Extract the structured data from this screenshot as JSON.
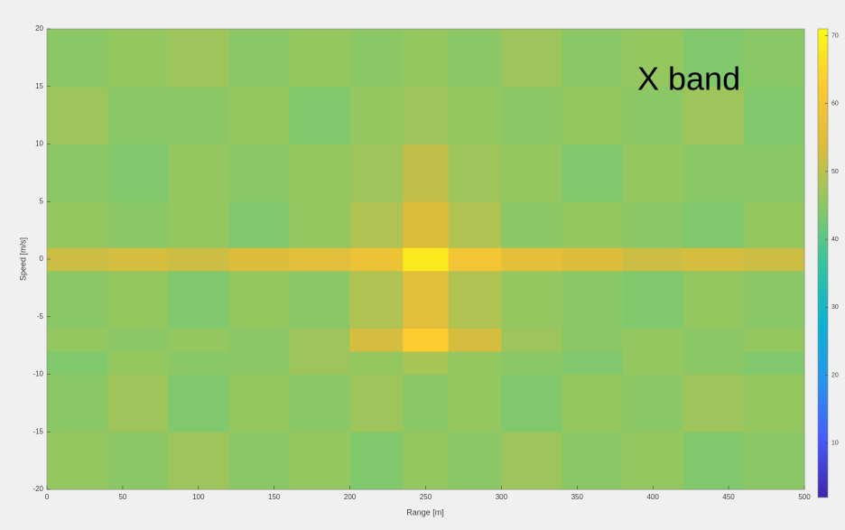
{
  "chart_data": {
    "type": "heatmap",
    "xlabel": "Range [m]",
    "ylabel": "Speed [m/s]",
    "annotation": "X band",
    "x_bins": [
      0,
      40,
      80,
      120,
      160,
      200,
      235,
      265,
      300,
      340,
      380,
      420,
      460,
      500
    ],
    "y_bins": [
      -20,
      -15,
      -10,
      -8,
      -6,
      -1,
      1,
      5,
      10,
      15,
      20
    ],
    "values": [
      [
        46,
        45,
        47,
        45,
        46,
        44,
        46,
        45,
        47,
        45,
        46,
        44,
        45
      ],
      [
        45,
        47,
        44,
        46,
        45,
        47,
        45,
        46,
        44,
        46,
        45,
        47,
        46
      ],
      [
        44,
        46,
        45,
        45,
        47,
        46,
        48,
        46,
        45,
        44,
        46,
        45,
        44
      ],
      [
        46,
        45,
        46,
        45,
        47,
        53,
        63,
        53,
        47,
        45,
        46,
        45,
        46
      ],
      [
        45,
        46,
        44,
        46,
        45,
        49,
        55,
        49,
        46,
        45,
        44,
        46,
        45
      ],
      [
        52,
        53,
        52,
        54,
        55,
        58,
        68,
        60,
        56,
        54,
        52,
        53,
        52
      ],
      [
        46,
        45,
        46,
        44,
        46,
        49,
        54,
        49,
        45,
        46,
        45,
        44,
        46
      ],
      [
        45,
        44,
        46,
        45,
        46,
        47,
        51,
        47,
        46,
        44,
        46,
        45,
        45
      ],
      [
        47,
        45,
        45,
        46,
        44,
        46,
        47,
        46,
        45,
        46,
        45,
        47,
        44
      ],
      [
        45,
        46,
        47,
        45,
        46,
        45,
        46,
        45,
        47,
        45,
        46,
        44,
        45
      ]
    ],
    "xlim": [
      0,
      500
    ],
    "xticks": [
      0,
      50,
      100,
      150,
      200,
      250,
      300,
      350,
      400,
      450,
      500
    ],
    "ylim": [
      -20,
      20
    ],
    "yticks": [
      -20,
      -15,
      -10,
      -5,
      0,
      5,
      10,
      15,
      20
    ],
    "colormap": "parula",
    "clim": [
      2,
      71
    ],
    "cticks": [
      10,
      20,
      30,
      40,
      50,
      60,
      70
    ]
  }
}
